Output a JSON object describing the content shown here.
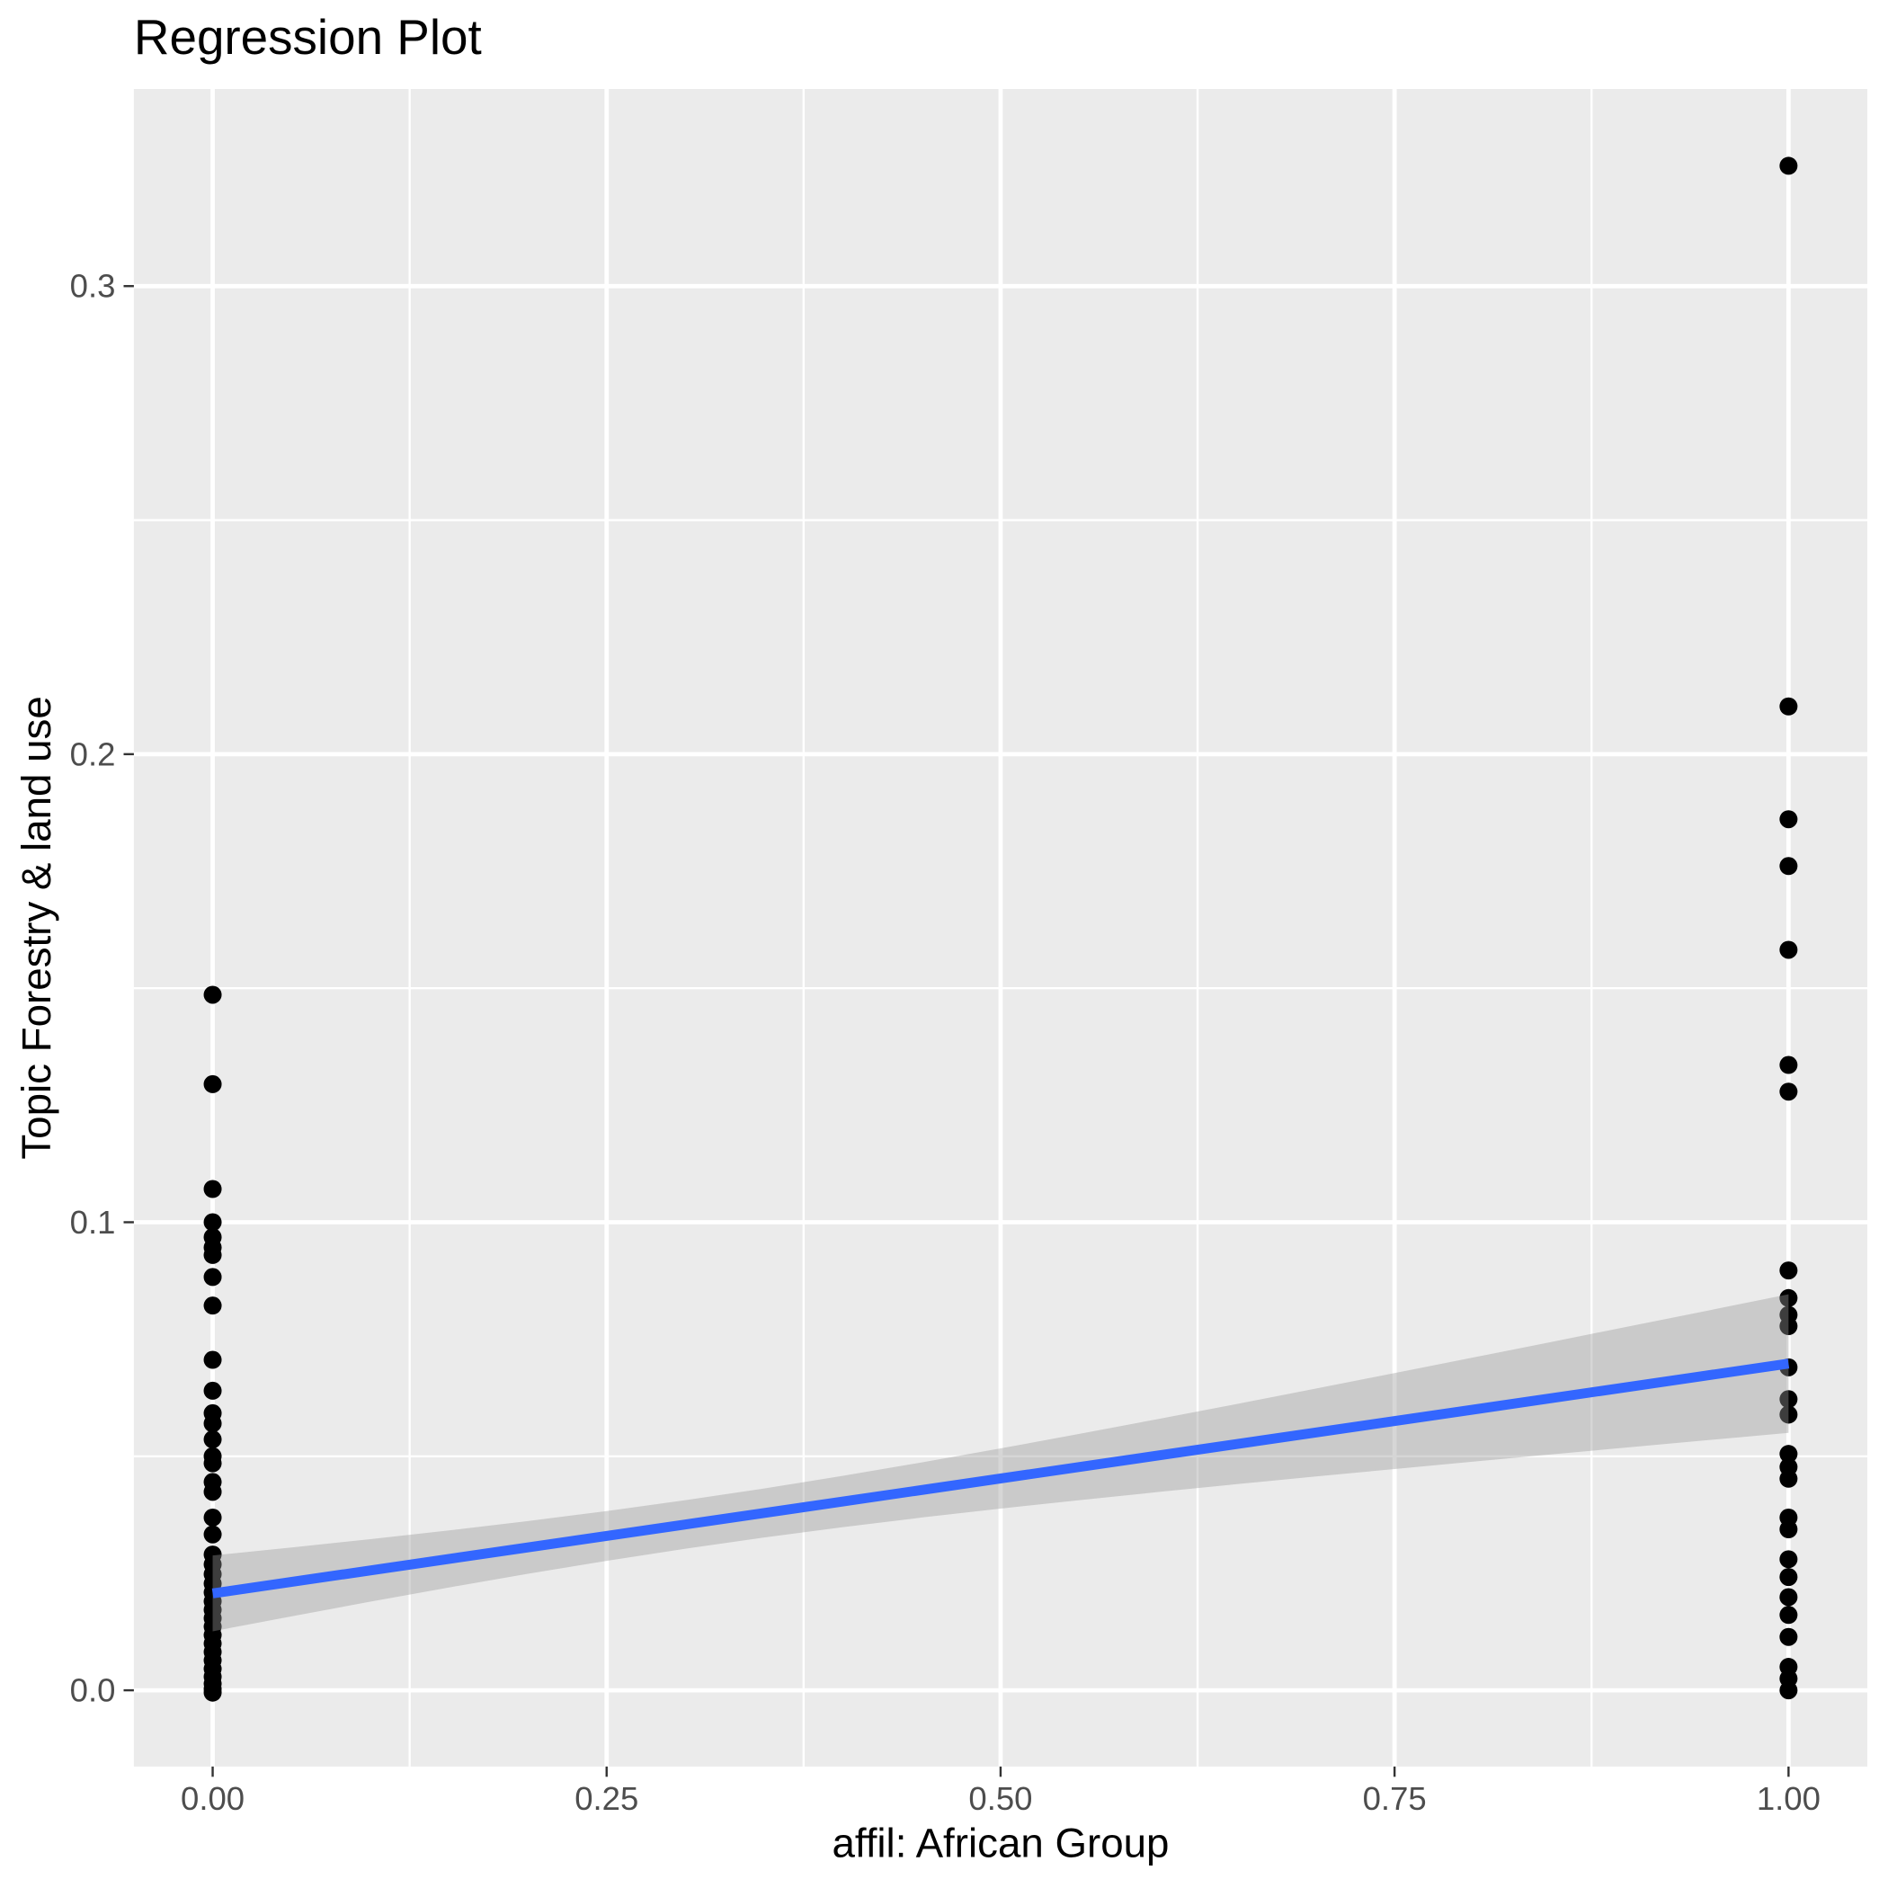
{
  "chart_data": {
    "type": "scatter",
    "title": "Regression Plot",
    "xlabel": "affil: African Group",
    "ylabel": "Topic Forestry & land use",
    "x_ticks": [
      0.0,
      0.25,
      0.5,
      0.75,
      1.0
    ],
    "x_tick_labels": [
      "0.00",
      "0.25",
      "0.50",
      "0.75",
      "1.00"
    ],
    "x_minor_breaks": [
      0.125,
      0.375,
      0.625,
      0.875
    ],
    "y_ticks": [
      0.0,
      0.1,
      0.2,
      0.3
    ],
    "y_tick_labels": [
      "0.0",
      "0.1",
      "0.2",
      "0.3"
    ],
    "y_minor_breaks": [
      0.05,
      0.15,
      0.25
    ],
    "xlim": [
      -0.05,
      1.05
    ],
    "ylim": [
      -0.01629,
      0.34211
    ],
    "grid": true,
    "legend": "none",
    "series": [
      {
        "name": "observations",
        "type": "scatter",
        "points": [
          [
            0,
            0.1486
          ],
          [
            0,
            0.1295
          ],
          [
            0,
            0.1071
          ],
          [
            0,
            0.1
          ],
          [
            0,
            0.0968
          ],
          [
            0,
            0.0946
          ],
          [
            0,
            0.093
          ],
          [
            0,
            0.0883
          ],
          [
            0,
            0.0822
          ],
          [
            0,
            0.0706
          ],
          [
            0,
            0.064
          ],
          [
            0,
            0.0592
          ],
          [
            0,
            0.057
          ],
          [
            0,
            0.0536
          ],
          [
            0,
            0.05
          ],
          [
            0,
            0.0485
          ],
          [
            0,
            0.0445
          ],
          [
            0,
            0.0424
          ],
          [
            0,
            0.0369
          ],
          [
            0,
            0.0333
          ],
          [
            0,
            0.029
          ],
          [
            0,
            0.0269
          ],
          [
            0,
            0.0248
          ],
          [
            0,
            0.0228
          ],
          [
            0,
            0.0209
          ],
          [
            0,
            0.019
          ],
          [
            0,
            0.0172
          ],
          [
            0,
            0.0154
          ],
          [
            0,
            0.0136
          ],
          [
            0,
            0.0118
          ],
          [
            0,
            0.01
          ],
          [
            0,
            0.0082
          ],
          [
            0,
            0.0064
          ],
          [
            0,
            0.0046
          ],
          [
            0,
            0.0029
          ],
          [
            0,
            0.0014
          ],
          [
            0,
            0.0003
          ],
          [
            0,
            -0.0005
          ],
          [
            1,
            0.3257
          ],
          [
            1,
            0.2102
          ],
          [
            1,
            0.1861
          ],
          [
            1,
            0.1761
          ],
          [
            1,
            0.1582
          ],
          [
            1,
            0.1336
          ],
          [
            1,
            0.1279
          ],
          [
            1,
            0.0897
          ],
          [
            1,
            0.0838
          ],
          [
            1,
            0.0802
          ],
          [
            1,
            0.0778
          ],
          [
            1,
            0.069
          ],
          [
            1,
            0.0622
          ],
          [
            1,
            0.0589
          ],
          [
            1,
            0.0505
          ],
          [
            1,
            0.0477
          ],
          [
            1,
            0.0452
          ],
          [
            1,
            0.0369
          ],
          [
            1,
            0.0344
          ],
          [
            1,
            0.028
          ],
          [
            1,
            0.0242
          ],
          [
            1,
            0.0199
          ],
          [
            1,
            0.0161
          ],
          [
            1,
            0.0114
          ],
          [
            1,
            0.005
          ],
          [
            1,
            0.0025
          ],
          [
            1,
            0.0
          ]
        ]
      },
      {
        "name": "linear_fit",
        "type": "line",
        "x": [
          0,
          1
        ],
        "y": [
          0.0207,
          0.0698
        ],
        "intercept": 0.0207,
        "slope": 0.0491
      },
      {
        "name": "confidence_band",
        "type": "area",
        "x": [
          0,
          0.05,
          0.1,
          0.15,
          0.2,
          0.25,
          0.3,
          0.35,
          0.4,
          0.45,
          0.5,
          0.55,
          0.6,
          0.65,
          0.7,
          0.75,
          0.8,
          0.85,
          0.9,
          0.95,
          1.0
        ],
        "upper": [
          0.0288,
          0.03052,
          0.03229,
          0.03415,
          0.03615,
          0.03829,
          0.04061,
          0.04312,
          0.04582,
          0.04869,
          0.05168,
          0.05478,
          0.05796,
          0.06118,
          0.06446,
          0.06777,
          0.0711,
          0.07445,
          0.07783,
          0.0812,
          0.0846
        ],
        "lower": [
          0.0126,
          0.0158,
          0.01893,
          0.02197,
          0.02489,
          0.02765,
          0.03025,
          0.03264,
          0.03486,
          0.03691,
          0.03882,
          0.04062,
          0.04236,
          0.04404,
          0.04568,
          0.04727,
          0.04886,
          0.05041,
          0.05195,
          0.05348,
          0.055
        ]
      }
    ],
    "colors": {
      "panel_background": "#EBEBEB",
      "grid_line": "#FFFFFF",
      "point": "#000000",
      "regression_line": "#3366FF",
      "confidence_band_fill": "#999999",
      "confidence_band_opacity": 0.4,
      "tick_mark": "#333333",
      "tick_label": "#4D4D4D",
      "title_text": "#000000",
      "figure_background": "#FFFFFF"
    }
  }
}
